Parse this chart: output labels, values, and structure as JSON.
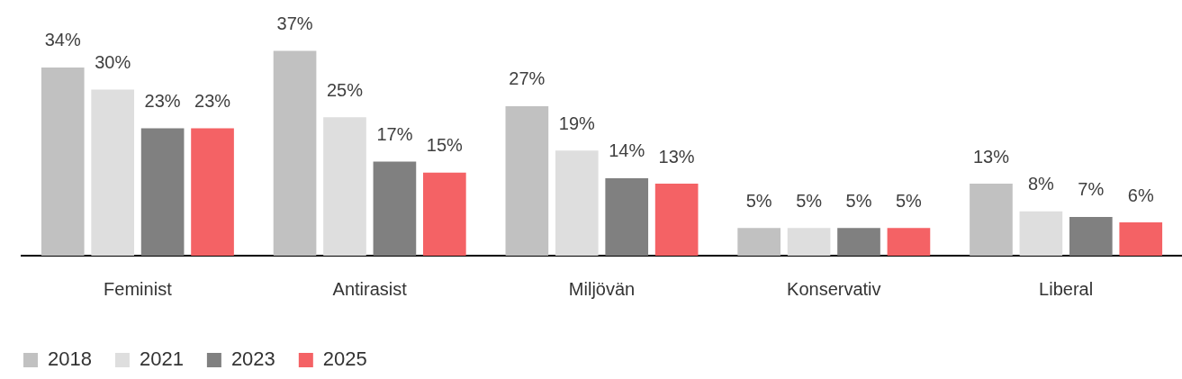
{
  "chart_data": {
    "type": "bar",
    "categories": [
      "Feminist",
      "Antirasist",
      "Miljövän",
      "Konservativ",
      "Liberal"
    ],
    "series": [
      {
        "name": "2018",
        "color": "#c1c1c1",
        "values": [
          34,
          37,
          27,
          5,
          13
        ],
        "value_labels": [
          "34%",
          "37%",
          "27%",
          "5%",
          "13%"
        ]
      },
      {
        "name": "2021",
        "color": "#dedede",
        "values": [
          30,
          25,
          19,
          5,
          8
        ],
        "value_labels": [
          "30%",
          "25%",
          "19%",
          "5%",
          "8%"
        ]
      },
      {
        "name": "2023",
        "color": "#808080",
        "values": [
          23,
          17,
          14,
          5,
          7
        ],
        "value_labels": [
          "23%",
          "17%",
          "14%",
          "5%",
          "7%"
        ]
      },
      {
        "name": "2025",
        "color": "#f46265",
        "values": [
          23,
          15,
          13,
          5,
          6
        ],
        "value_labels": [
          "23%",
          "15%",
          "13%",
          "5%",
          "6%"
        ]
      }
    ],
    "legend": "bottom left",
    "tick_labels": "x"
  }
}
